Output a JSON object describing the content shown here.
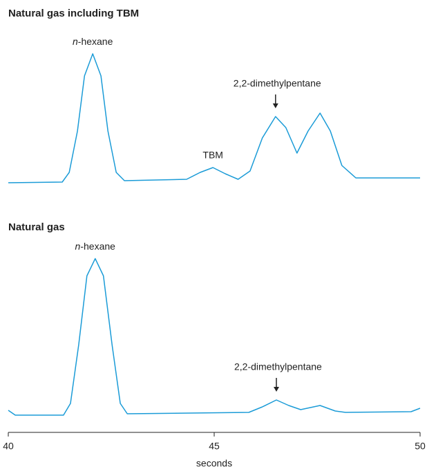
{
  "chart_data": [
    {
      "type": "line",
      "title": "Natural gas including TBM",
      "color": "#1a9bd7",
      "xlim": [
        40,
        50
      ],
      "ylim": [
        0,
        100
      ],
      "x": [
        40.0,
        41.31,
        41.48,
        41.68,
        41.85,
        42.05,
        42.25,
        42.42,
        42.62,
        42.82,
        44.33,
        44.66,
        44.97,
        45.27,
        45.58,
        45.87,
        46.17,
        46.49,
        46.74,
        47.01,
        47.28,
        47.57,
        47.82,
        48.1,
        48.44,
        50.0
      ],
      "values": [
        2.5,
        3,
        10,
        40,
        80,
        96,
        80,
        40,
        10,
        4,
        5,
        10,
        13.5,
        9,
        5,
        11,
        35,
        50.5,
        42.5,
        24,
        40,
        53,
        40,
        15,
        6,
        6
      ],
      "annotations": [
        {
          "text": "n-hexane",
          "x": 42.05,
          "arrow": false
        },
        {
          "text": "TBM",
          "x": 44.97,
          "arrow": false
        },
        {
          "text": "2,2-dimethylpentane",
          "x": 46.49,
          "arrow": true
        }
      ]
    },
    {
      "type": "line",
      "title": "Natural gas",
      "color": "#1a9bd7",
      "xlim": [
        40,
        50
      ],
      "xticks": [
        40,
        45,
        50
      ],
      "xlabel": "seconds",
      "ylim": [
        0,
        120
      ],
      "x": [
        40.0,
        40.17,
        41.34,
        41.51,
        41.71,
        41.91,
        42.11,
        42.31,
        42.52,
        42.72,
        42.89,
        45.84,
        46.17,
        46.51,
        46.81,
        47.1,
        47.57,
        47.94,
        48.19,
        49.78,
        50.0
      ],
      "values": [
        5,
        1.5,
        1.5,
        10,
        52.5,
        102.5,
        115,
        102.5,
        52.5,
        10,
        2.5,
        3.5,
        7.5,
        12.5,
        8.5,
        5.5,
        8.5,
        4.5,
        3.5,
        4,
        6.5
      ],
      "annotations": [
        {
          "text": "n-hexane",
          "x": 42.11,
          "arrow": false
        },
        {
          "text": "2,2-dimethylpentane",
          "x": 46.51,
          "arrow": true
        }
      ]
    }
  ]
}
